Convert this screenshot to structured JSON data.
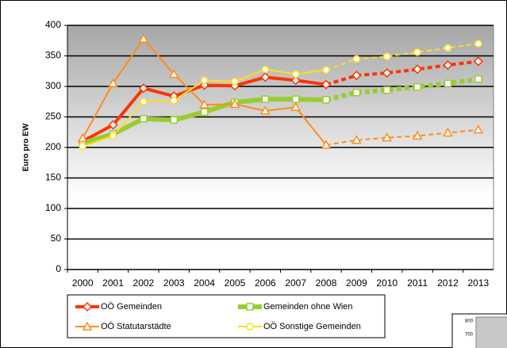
{
  "chart_data": {
    "type": "line",
    "ylabel": "Euro pro EW",
    "categories": [
      "2000",
      "2001",
      "2002",
      "2003",
      "2004",
      "2005",
      "2006",
      "2007",
      "2008",
      "2009",
      "2010",
      "2011",
      "2012",
      "2013"
    ],
    "forecast_from": "2008",
    "ylim": [
      0,
      400
    ],
    "yticks": [
      0,
      50,
      100,
      150,
      200,
      250,
      300,
      350,
      400
    ],
    "grid": true,
    "legend": "bottom",
    "series": [
      {
        "name": "OÖ Gemeinden",
        "color": "#ff3300",
        "marker": "diamond",
        "values": [
          210,
          237,
          297,
          284,
          302,
          301,
          315,
          310,
          303,
          318,
          322,
          328,
          335,
          341
        ]
      },
      {
        "name": "Gemeinden ohne Wien",
        "color": "#99cc33",
        "marker": "square",
        "values": [
          207,
          222,
          247,
          245,
          258,
          274,
          279,
          279,
          278,
          290,
          294,
          299,
          305,
          312
        ]
      },
      {
        "name": "OÖ Statutarstädte",
        "color": "#ff8c1a",
        "marker": "triangle",
        "values": [
          215,
          305,
          378,
          320,
          270,
          271,
          260,
          266,
          204,
          212,
          216,
          219,
          224,
          229
        ]
      },
      {
        "name": "OÖ Sonstige Gemeinden",
        "color": "#ffdd22",
        "marker": "circle",
        "values": [
          202,
          219,
          275,
          277,
          310,
          308,
          328,
          320,
          327,
          345,
          349,
          356,
          363,
          370
        ]
      }
    ]
  },
  "inset": {
    "yticks": [
      800,
      700
    ]
  }
}
